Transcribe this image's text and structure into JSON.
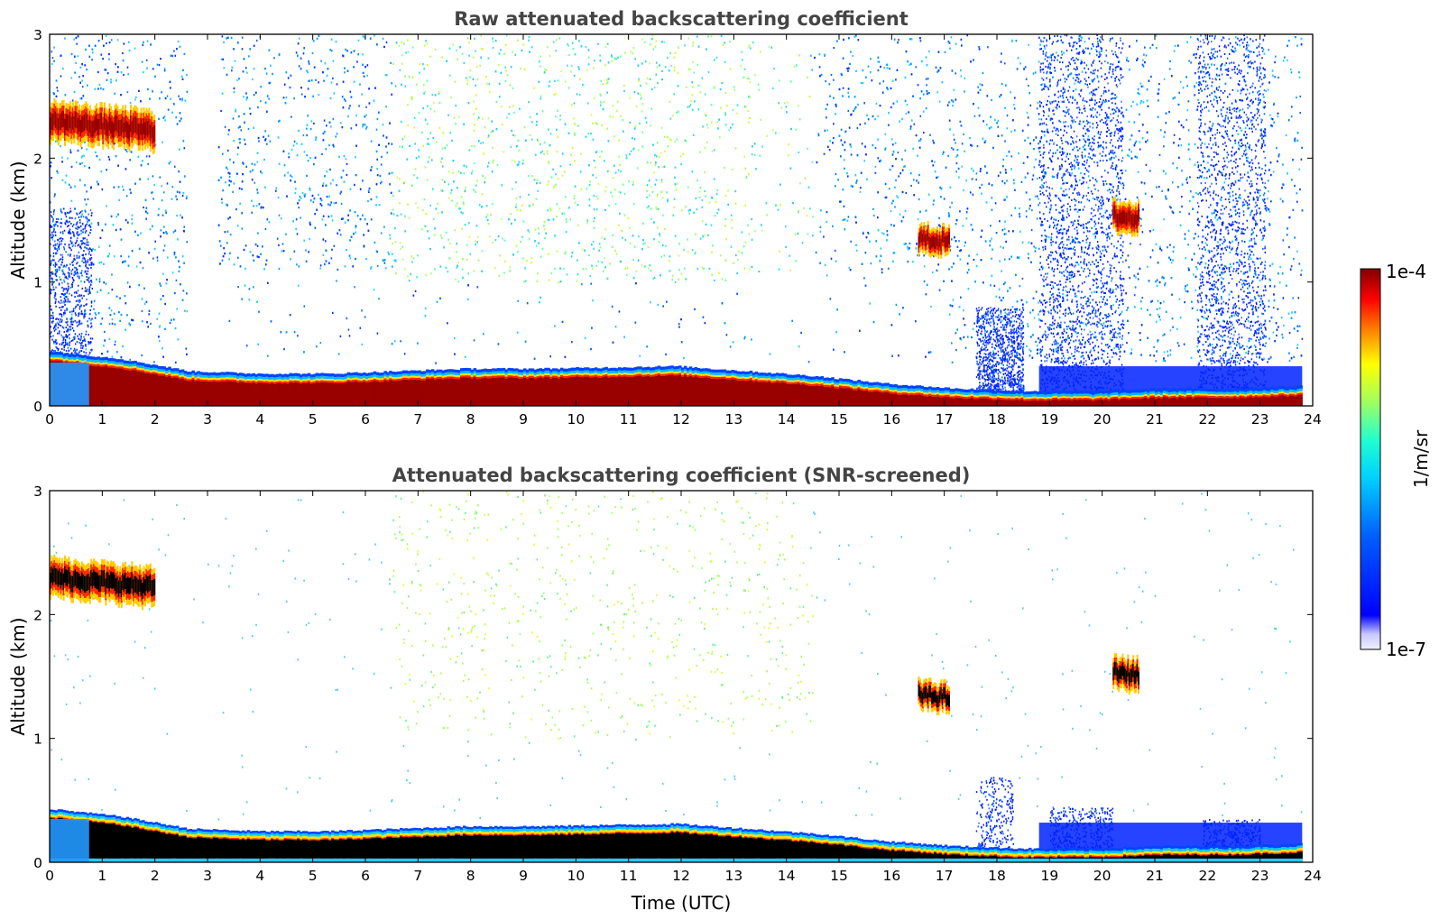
{
  "chart_data": [
    {
      "type": "heatmap",
      "title": "Raw attenuated backscattering coefficient",
      "xlabel": "",
      "ylabel": "Altitude (km)",
      "xlim": [
        0,
        24
      ],
      "ylim": [
        0,
        3
      ],
      "xticks": [
        "0",
        "1",
        "2",
        "3",
        "4",
        "5",
        "6",
        "7",
        "8",
        "9",
        "10",
        "11",
        "12",
        "13",
        "14",
        "15",
        "16",
        "17",
        "18",
        "19",
        "20",
        "21",
        "22",
        "23",
        "24"
      ],
      "yticks": [
        "0",
        "1",
        "2",
        "3"
      ],
      "colormap": "jet",
      "color_scale": "log",
      "features": [
        {
          "name": "boundary layer",
          "x_start": 0.0,
          "x_end": 23.8,
          "top_km": [
            0.38,
            0.32,
            0.22,
            0.2,
            0.2,
            0.22,
            0.24,
            0.24,
            0.25,
            0.26,
            0.22,
            0.18,
            0.12,
            0.08,
            0.06,
            0.06,
            0.08,
            0.08,
            0.1
          ]
        },
        {
          "name": "cloud layer",
          "x_start": 0.0,
          "x_end": 2.0,
          "y_km": 2.2
        },
        {
          "name": "cloud patch",
          "x_start": 16.5,
          "x_end": 17.1,
          "y_km": 1.3
        },
        {
          "name": "cloud patch",
          "x_start": 20.2,
          "x_end": 20.7,
          "y_km": 1.5
        },
        {
          "name": "noise region",
          "x_start": 7.0,
          "x_end": 14.0,
          "y_min_km": 1.1,
          "y_max_km": 3.0
        }
      ]
    },
    {
      "type": "heatmap",
      "title": "Attenuated backscattering coefficient (SNR-screened)",
      "xlabel": "Time (UTC)",
      "ylabel": "Altitude (km)",
      "xlim": [
        0,
        24
      ],
      "ylim": [
        0,
        3
      ],
      "xticks": [
        "0",
        "1",
        "2",
        "3",
        "4",
        "5",
        "6",
        "7",
        "8",
        "9",
        "10",
        "11",
        "12",
        "13",
        "14",
        "15",
        "16",
        "17",
        "18",
        "19",
        "20",
        "21",
        "22",
        "23",
        "24"
      ],
      "yticks": [
        "0",
        "1",
        "2",
        "3"
      ],
      "colormap": "jet",
      "color_scale": "log"
    }
  ],
  "colorbar": {
    "max_label": "1e-4",
    "min_label": "1e-7",
    "unit_label": "1/m/sr"
  }
}
